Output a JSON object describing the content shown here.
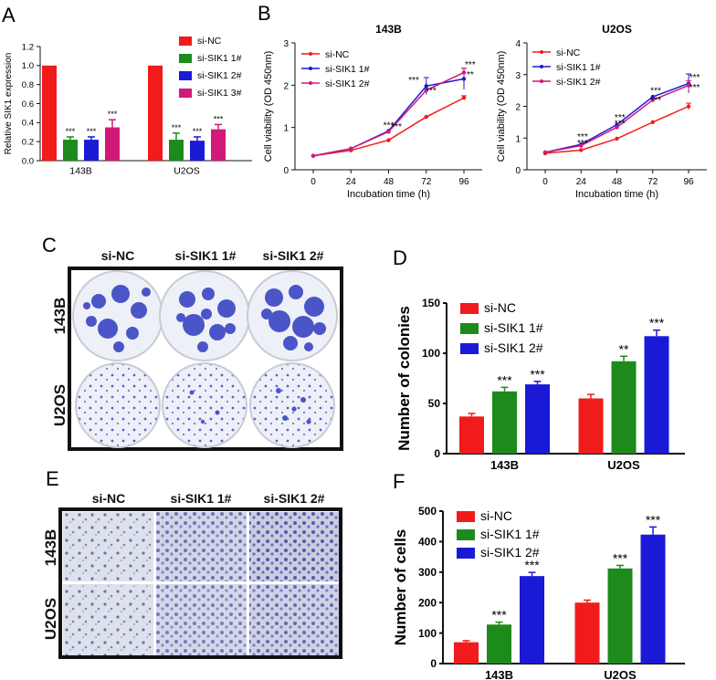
{
  "panel_letters": {
    "A": "A",
    "B": "B",
    "C": "C",
    "D": "D",
    "E": "E",
    "F": "F"
  },
  "colors": {
    "si_NC": "#f21b1b",
    "si_SIK1_1": "#1c8b1c",
    "si_SIK1_2": "#1a1ad6",
    "si_SIK1_3": "#d1197a",
    "colony_stain": "#4b55c8",
    "transwell_bg": "#d8dde8"
  },
  "colony_panel": {
    "columns": [
      "si-NC",
      "si-SIK1 1#",
      "si-SIK1 2#"
    ],
    "rows": [
      "143B",
      "U2OS"
    ]
  },
  "transwell_panel": {
    "columns": [
      "si-NC",
      "si-SIK1 1#",
      "si-SIK1 2#"
    ],
    "rows": [
      "143B",
      "U2OS"
    ]
  },
  "chart_data": [
    {
      "id": "A",
      "type": "bar",
      "title": "",
      "xlabel": "",
      "ylabel": "Relative SIK1 expression",
      "ylim": [
        0,
        1.2
      ],
      "yticks": [
        "0.0",
        "0.2",
        "0.4",
        "0.6",
        "0.8",
        "1.0",
        "1.2"
      ],
      "categories": [
        "143B",
        "U2OS"
      ],
      "series": [
        {
          "name": "si-NC",
          "values": [
            1.0,
            1.0
          ],
          "errors": [
            0,
            0
          ],
          "sig": [
            "",
            ""
          ]
        },
        {
          "name": "si-SIK1 1#",
          "values": [
            0.22,
            0.22
          ],
          "errors": [
            0.03,
            0.07
          ],
          "sig": [
            "***",
            "***"
          ]
        },
        {
          "name": "si-SIK1 2#",
          "values": [
            0.22,
            0.21
          ],
          "errors": [
            0.03,
            0.04
          ],
          "sig": [
            "***",
            "***"
          ]
        },
        {
          "name": "si-SIK1 3#",
          "values": [
            0.35,
            0.33
          ],
          "errors": [
            0.08,
            0.05
          ],
          "sig": [
            "***",
            "***"
          ]
        }
      ],
      "legend_position": "top-right"
    },
    {
      "id": "B1",
      "type": "line",
      "title": "143B",
      "xlabel": "Incubation time (h)",
      "ylabel": "Cell viability (OD 450nm)",
      "x": [
        0,
        24,
        48,
        72,
        96
      ],
      "xticks": [
        "0",
        "24",
        "48",
        "72",
        "96"
      ],
      "ylim": [
        0,
        3
      ],
      "yticks": [
        "0",
        "1",
        "2",
        "3"
      ],
      "series": [
        {
          "name": "si-NC",
          "values": [
            0.33,
            0.46,
            0.7,
            1.25,
            1.7
          ],
          "errors": [
            0,
            0,
            0,
            0,
            0.05
          ]
        },
        {
          "name": "si-SIK1 1#",
          "values": [
            0.33,
            0.5,
            0.92,
            1.98,
            2.15
          ],
          "errors": [
            0,
            0,
            0,
            0.2,
            0.25
          ]
        },
        {
          "name": "si-SIK1 2#",
          "values": [
            0.33,
            0.5,
            0.9,
            1.88,
            2.3
          ],
          "errors": [
            0,
            0,
            0,
            0,
            0.1
          ]
        }
      ],
      "annotations": [
        {
          "text": "***",
          "x": 48,
          "y": 0.98
        },
        {
          "text": "***",
          "x": 53,
          "y": 0.95
        },
        {
          "text": "***",
          "x": 64,
          "y": 2.05
        },
        {
          "text": "***",
          "x": 75,
          "y": 1.8
        },
        {
          "text": "***",
          "x": 100,
          "y": 2.42
        },
        {
          "text": "**",
          "x": 100,
          "y": 2.18
        }
      ],
      "legend_position": "top-left"
    },
    {
      "id": "B2",
      "type": "line",
      "title": "U2OS",
      "xlabel": "Incubation time (h)",
      "ylabel": "Cell viability (OD 450nm)",
      "x": [
        0,
        24,
        48,
        72,
        96
      ],
      "xticks": [
        "0",
        "24",
        "48",
        "72",
        "96"
      ],
      "ylim": [
        0,
        4
      ],
      "yticks": [
        "0",
        "1",
        "2",
        "3",
        "4"
      ],
      "series": [
        {
          "name": "si-NC",
          "values": [
            0.52,
            0.62,
            0.98,
            1.5,
            2.0
          ],
          "errors": [
            0,
            0,
            0,
            0,
            0.1
          ]
        },
        {
          "name": "si-SIK1 1#",
          "values": [
            0.55,
            0.8,
            1.42,
            2.3,
            2.72
          ],
          "errors": [
            0,
            0,
            0,
            0,
            0.3
          ]
        },
        {
          "name": "si-SIK1 2#",
          "values": [
            0.55,
            0.76,
            1.34,
            2.2,
            2.66
          ],
          "errors": [
            0,
            0,
            0,
            0,
            0.15
          ]
        }
      ],
      "annotations": [
        {
          "text": "***",
          "x": 25,
          "y": 0.95
        },
        {
          "text": "***",
          "x": 25,
          "y": 0.75
        },
        {
          "text": "***",
          "x": 50,
          "y": 1.55
        },
        {
          "text": "***",
          "x": 50,
          "y": 1.37
        },
        {
          "text": "***",
          "x": 74,
          "y": 2.4
        },
        {
          "text": "***",
          "x": 74,
          "y": 2.1
        },
        {
          "text": "***",
          "x": 100,
          "y": 2.82
        },
        {
          "text": "***",
          "x": 100,
          "y": 2.5
        }
      ],
      "legend_position": "top-left"
    },
    {
      "id": "D",
      "type": "bar",
      "title": "",
      "xlabel": "",
      "ylabel": "Number of colonies",
      "ylim": [
        0,
        150
      ],
      "yticks": [
        "0",
        "50",
        "100",
        "150"
      ],
      "categories": [
        "143B",
        "U2OS"
      ],
      "series": [
        {
          "name": "si-NC",
          "values": [
            37,
            55
          ],
          "errors": [
            3,
            4
          ],
          "sig": [
            "",
            ""
          ]
        },
        {
          "name": "si-SIK1  1#",
          "values": [
            62,
            92
          ],
          "errors": [
            4,
            5
          ],
          "sig": [
            "***",
            "**"
          ]
        },
        {
          "name": "si-SIK1  2#",
          "values": [
            69,
            117
          ],
          "errors": [
            3,
            6
          ],
          "sig": [
            "***",
            "***"
          ]
        }
      ],
      "legend_position": "top-left"
    },
    {
      "id": "F",
      "type": "bar",
      "title": "",
      "xlabel": "",
      "ylabel": "Number of  cells",
      "ylim": [
        0,
        500
      ],
      "yticks": [
        "0",
        "100",
        "200",
        "300",
        "400",
        "500"
      ],
      "categories": [
        "143B",
        "U2OS"
      ],
      "series": [
        {
          "name": "si-NC",
          "values": [
            70,
            200
          ],
          "errors": [
            5,
            8
          ],
          "sig": [
            "",
            ""
          ]
        },
        {
          "name": "si-SIK1  1#",
          "values": [
            128,
            312
          ],
          "errors": [
            8,
            10
          ],
          "sig": [
            "***",
            "***"
          ]
        },
        {
          "name": "si-SIK1  2#",
          "values": [
            287,
            423
          ],
          "errors": [
            12,
            25
          ],
          "sig": [
            "***",
            "***"
          ]
        }
      ],
      "legend_position": "top-left"
    }
  ]
}
